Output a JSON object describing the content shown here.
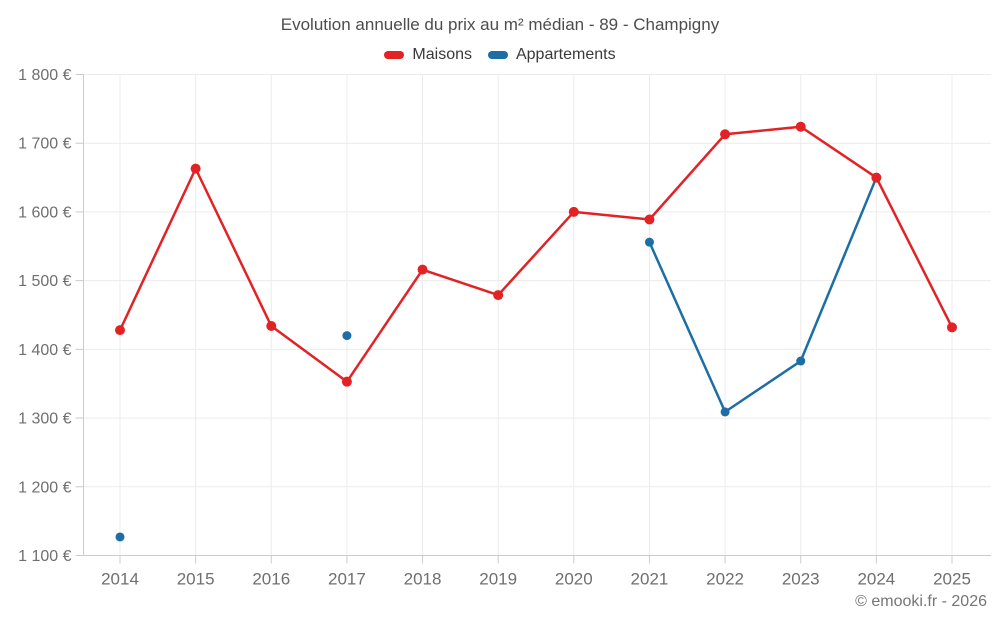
{
  "title": "Evolution annuelle du prix au m² médian - 89 - Champigny",
  "legend": {
    "items": [
      {
        "label": "Maisons",
        "color": "#e32226"
      },
      {
        "label": "Appartements",
        "color": "#1c6ea4"
      }
    ]
  },
  "footer": {
    "copyright": "© emooki.fr - 2026"
  },
  "chart_data": {
    "type": "line",
    "title": "Evolution annuelle du prix au m² médian - 89 - Champigny",
    "categories": [
      "2014",
      "2015",
      "2016",
      "2017",
      "2018",
      "2019",
      "2020",
      "2021",
      "2022",
      "2023",
      "2024",
      "2025"
    ],
    "series": [
      {
        "name": "Maisons",
        "color": "#e32226",
        "values": [
          1428,
          1663,
          1434,
          1353,
          1516,
          1479,
          1600,
          1589,
          1713,
          1724,
          1650,
          1432
        ]
      },
      {
        "name": "Appartements",
        "color": "#1c6ea4",
        "values": [
          1127,
          null,
          null,
          1420,
          null,
          null,
          null,
          1556,
          1309,
          1383,
          1650,
          null
        ]
      }
    ],
    "xlabel": "",
    "ylabel": "",
    "y_unit": "€",
    "ylim": [
      1100,
      1800
    ],
    "ytick_step": 100,
    "grid": true,
    "legend_position": "top",
    "connect_gaps": false
  }
}
